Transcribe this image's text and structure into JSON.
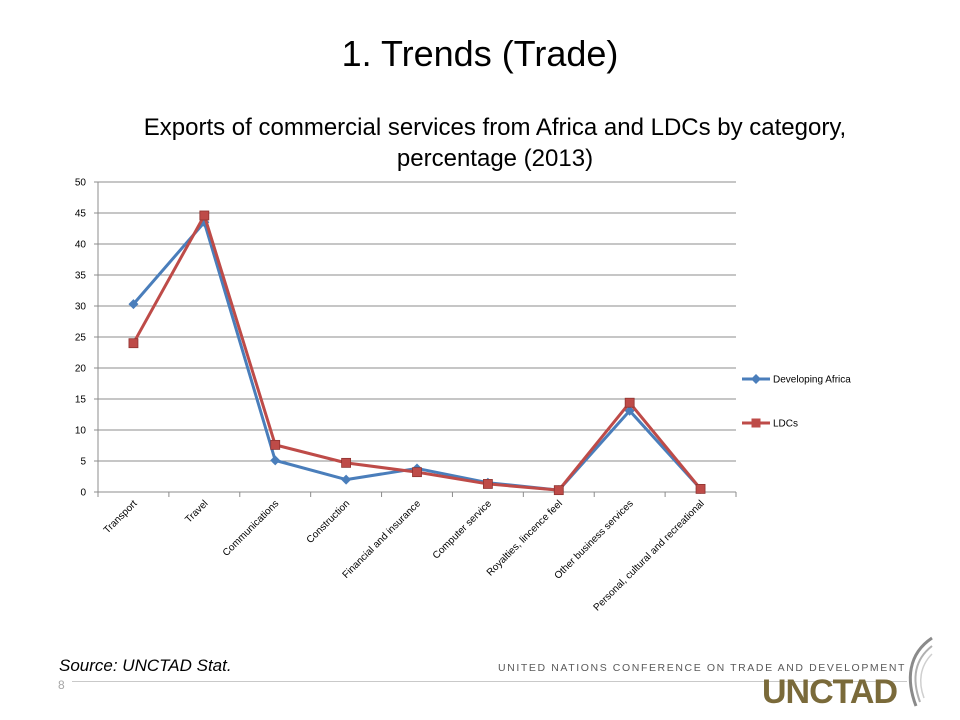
{
  "slide": {
    "title": "1. Trends (Trade)",
    "source": "Source: UNCTAD Stat.",
    "page_number": "8",
    "footer_org": "UNITED NATIONS CONFERENCE ON TRADE AND DEVELOPMENT",
    "logo_text": "UNCTAD"
  },
  "chart_data": {
    "type": "line",
    "title": "Exports of commercial services from Africa and LDCs by category, percentage  (2013)",
    "xlabel": "",
    "ylabel": "",
    "ylim": [
      0,
      50
    ],
    "yticks": [
      0,
      5,
      10,
      15,
      20,
      25,
      30,
      35,
      40,
      45,
      50
    ],
    "grid": "horizontal",
    "legend_position": "right",
    "categories": [
      "Transport",
      "Travel",
      "Communications",
      "Construction",
      "Financial and insurance",
      "Computer service",
      "Royalties, lincence feel",
      "Other business services",
      "Personal, cultural and recreational"
    ],
    "series": [
      {
        "name": "Developing Africa",
        "color": "#4a7ebb",
        "marker": "diamond",
        "values": [
          30.3,
          43.5,
          5.1,
          2.0,
          3.8,
          1.5,
          0.3,
          13.1,
          0.5
        ]
      },
      {
        "name": "LDCs",
        "color": "#be4b48",
        "marker": "square",
        "values": [
          24.0,
          44.6,
          7.6,
          4.7,
          3.2,
          1.3,
          0.3,
          14.4,
          0.5
        ]
      }
    ]
  }
}
